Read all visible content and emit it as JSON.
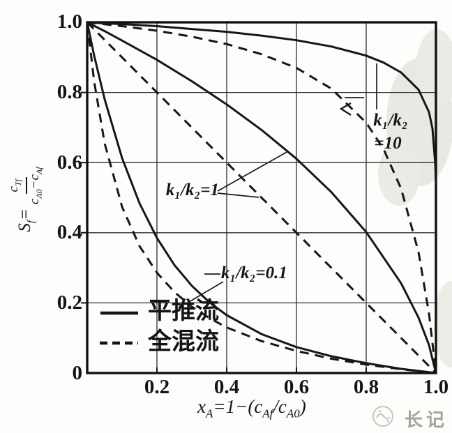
{
  "axes": {
    "y_ticks": [
      "1.0",
      "0.8",
      "0.6",
      "0.4",
      "0.2",
      "0"
    ],
    "x_ticks": [
      "0.2",
      "0.4",
      "0.6",
      "0.8",
      "1.0"
    ]
  },
  "y_title": {
    "S": "S",
    "S_sub": "f",
    "eq": "=",
    "num_c": "c",
    "num_sub": "Tf",
    "den_c1": "c",
    "den_sub1": "A0",
    "minus": "−",
    "den_c2": "c",
    "den_sub2": "Af"
  },
  "x_title": {
    "v": "x",
    "v_sub": "A",
    "mid": "=1−(",
    "c1": "c",
    "c1_sub": "Af",
    "slash": "/",
    "c2": "c",
    "c2_sub": "A0",
    "close": ")"
  },
  "curve_labels": {
    "k1": "k₁/k₂=1",
    "k01": "k₁/k₂=0.1",
    "k10_line1": "k₁/k₂",
    "k10_line2": "=10"
  },
  "legend": {
    "plug_label": "平推流",
    "mixed_label": "全混流"
  },
  "watermark": {
    "text": "长记"
  },
  "chart_data": {
    "type": "line",
    "title": "",
    "xlabel": "xA = 1 − (cAf/cA0)",
    "ylabel": "Sf = cTf/(cA0 − cAf)",
    "xlim": [
      0,
      1
    ],
    "ylim": [
      0,
      1
    ],
    "x_tick_values": [
      0,
      0.2,
      0.4,
      0.6,
      0.8,
      1.0
    ],
    "y_tick_values": [
      0,
      0.2,
      0.4,
      0.6,
      0.8,
      1.0
    ],
    "grid": true,
    "legend_position": "lower-left-inside",
    "legend_entries": [
      {
        "label": "平推流",
        "style": "solid"
      },
      {
        "label": "全混流",
        "style": "dashed"
      }
    ],
    "series": [
      {
        "id": "plug-k10",
        "name": "平推流 k₁/k₂=10",
        "style": "solid",
        "points": [
          [
            0,
            1
          ],
          [
            0.05,
            0.997
          ],
          [
            0.1,
            0.995
          ],
          [
            0.2,
            0.989
          ],
          [
            0.3,
            0.981
          ],
          [
            0.4,
            0.973
          ],
          [
            0.5,
            0.962
          ],
          [
            0.6,
            0.949
          ],
          [
            0.7,
            0.931
          ],
          [
            0.8,
            0.905
          ],
          [
            0.85,
            0.885
          ],
          [
            0.9,
            0.857
          ],
          [
            0.95,
            0.808
          ],
          [
            0.98,
            0.744
          ],
          [
            0.99,
            0.697
          ],
          [
            0.998,
            0.596
          ],
          [
            1,
            0.54
          ]
        ]
      },
      {
        "id": "mixed-k10",
        "name": "全混流 k₁/k₂=10",
        "style": "dashed",
        "points": [
          [
            0,
            1
          ],
          [
            0.1,
            0.989
          ],
          [
            0.2,
            0.976
          ],
          [
            0.3,
            0.959
          ],
          [
            0.4,
            0.938
          ],
          [
            0.5,
            0.909
          ],
          [
            0.6,
            0.87
          ],
          [
            0.7,
            0.811
          ],
          [
            0.8,
            0.714
          ],
          [
            0.85,
            0.638
          ],
          [
            0.9,
            0.526
          ],
          [
            0.95,
            0.345
          ],
          [
            0.98,
            0.17
          ],
          [
            1,
            0
          ]
        ]
      },
      {
        "id": "plug-k1",
        "name": "平推流 k₁/k₂=1",
        "style": "solid",
        "points": [
          [
            0,
            1
          ],
          [
            0.05,
            0.975
          ],
          [
            0.1,
            0.948
          ],
          [
            0.2,
            0.893
          ],
          [
            0.3,
            0.832
          ],
          [
            0.4,
            0.766
          ],
          [
            0.5,
            0.693
          ],
          [
            0.6,
            0.611
          ],
          [
            0.7,
            0.516
          ],
          [
            0.8,
            0.402
          ],
          [
            0.9,
            0.256
          ],
          [
            0.95,
            0.158
          ],
          [
            0.98,
            0.08
          ],
          [
            1,
            0
          ]
        ]
      },
      {
        "id": "mixed-k1",
        "name": "全混流 k₁/k₂=1",
        "style": "dashed",
        "points": [
          [
            0,
            1
          ],
          [
            1,
            0
          ]
        ]
      },
      {
        "id": "plug-k01",
        "name": "平推流 k₁/k₂=0.1",
        "style": "solid",
        "points": [
          [
            0,
            1
          ],
          [
            0.02,
            0.905
          ],
          [
            0.05,
            0.781
          ],
          [
            0.1,
            0.613
          ],
          [
            0.15,
            0.484
          ],
          [
            0.2,
            0.385
          ],
          [
            0.25,
            0.308
          ],
          [
            0.3,
            0.249
          ],
          [
            0.35,
            0.202
          ],
          [
            0.4,
            0.165
          ],
          [
            0.5,
            0.111
          ],
          [
            0.6,
            0.074
          ],
          [
            0.7,
            0.048
          ],
          [
            0.8,
            0.028
          ],
          [
            0.9,
            0.012
          ],
          [
            1,
            0
          ]
        ]
      },
      {
        "id": "mixed-k01",
        "name": "全混流 k₁/k₂=0.1",
        "style": "dashed",
        "points": [
          [
            0,
            1
          ],
          [
            0.02,
            0.831
          ],
          [
            0.05,
            0.655
          ],
          [
            0.1,
            0.474
          ],
          [
            0.15,
            0.362
          ],
          [
            0.2,
            0.286
          ],
          [
            0.25,
            0.231
          ],
          [
            0.3,
            0.189
          ],
          [
            0.35,
            0.157
          ],
          [
            0.4,
            0.13
          ],
          [
            0.5,
            0.091
          ],
          [
            0.6,
            0.063
          ],
          [
            0.7,
            0.041
          ],
          [
            0.8,
            0.024
          ],
          [
            0.9,
            0.011
          ],
          [
            1,
            0
          ]
        ]
      }
    ]
  }
}
